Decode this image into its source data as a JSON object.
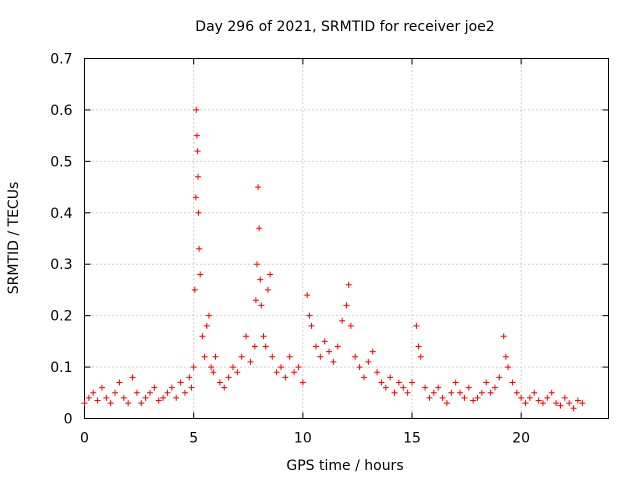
{
  "chart_data": {
    "type": "scatter",
    "title": "Day 296 of 2021, SRMTID for receiver joe2",
    "xlabel": "GPS time / hours",
    "ylabel": "SRMTID / TECUs",
    "xlim": [
      0,
      24
    ],
    "ylim": [
      0,
      0.7
    ],
    "xticks": [
      0,
      5,
      10,
      15,
      20
    ],
    "yticks": [
      0,
      0.1,
      0.2,
      0.3,
      0.4,
      0.5,
      0.6,
      0.7
    ],
    "xtick_labels": [
      "0",
      "5",
      "10",
      "15",
      "20"
    ],
    "ytick_labels": [
      "0",
      "0.1",
      "0.2",
      "0.3",
      "0.4",
      "0.5",
      "0.6",
      "0.7"
    ],
    "grid": true,
    "marker": "+",
    "color": "#ff0000",
    "series": [
      {
        "name": "SRMTID",
        "x": [
          0.0,
          0.2,
          0.4,
          0.6,
          0.8,
          1.0,
          1.2,
          1.4,
          1.6,
          1.8,
          2.0,
          2.2,
          2.4,
          2.6,
          2.8,
          3.0,
          3.2,
          3.4,
          3.6,
          3.8,
          4.0,
          4.2,
          4.4,
          4.6,
          4.8,
          4.9,
          5.0,
          5.05,
          5.1,
          5.12,
          5.15,
          5.18,
          5.2,
          5.22,
          5.25,
          5.3,
          5.4,
          5.5,
          5.6,
          5.7,
          5.8,
          5.9,
          6.0,
          6.2,
          6.4,
          6.6,
          6.8,
          7.0,
          7.2,
          7.4,
          7.6,
          7.8,
          7.85,
          7.9,
          7.95,
          8.0,
          8.05,
          8.1,
          8.2,
          8.3,
          8.4,
          8.5,
          8.6,
          8.8,
          9.0,
          9.2,
          9.4,
          9.6,
          9.8,
          10.0,
          10.2,
          10.3,
          10.4,
          10.6,
          10.8,
          11.0,
          11.2,
          11.4,
          11.6,
          11.8,
          12.0,
          12.1,
          12.2,
          12.4,
          12.6,
          12.8,
          13.0,
          13.2,
          13.4,
          13.6,
          13.8,
          14.0,
          14.2,
          14.4,
          14.6,
          14.8,
          15.0,
          15.2,
          15.3,
          15.4,
          15.6,
          15.8,
          16.0,
          16.2,
          16.4,
          16.6,
          16.8,
          17.0,
          17.2,
          17.4,
          17.6,
          17.8,
          18.0,
          18.2,
          18.4,
          18.6,
          18.8,
          19.0,
          19.2,
          19.3,
          19.4,
          19.6,
          19.8,
          20.0,
          20.2,
          20.4,
          20.6,
          20.8,
          21.0,
          21.2,
          21.4,
          21.6,
          21.8,
          22.0,
          22.2,
          22.4,
          22.6,
          22.8
        ],
        "y": [
          0.03,
          0.04,
          0.05,
          0.035,
          0.06,
          0.04,
          0.03,
          0.05,
          0.07,
          0.04,
          0.03,
          0.08,
          0.05,
          0.03,
          0.04,
          0.05,
          0.06,
          0.035,
          0.04,
          0.05,
          0.06,
          0.04,
          0.07,
          0.05,
          0.08,
          0.06,
          0.1,
          0.25,
          0.43,
          0.6,
          0.55,
          0.52,
          0.47,
          0.4,
          0.33,
          0.28,
          0.16,
          0.12,
          0.18,
          0.2,
          0.1,
          0.09,
          0.12,
          0.07,
          0.06,
          0.08,
          0.1,
          0.09,
          0.12,
          0.16,
          0.11,
          0.14,
          0.23,
          0.3,
          0.45,
          0.37,
          0.27,
          0.22,
          0.16,
          0.14,
          0.25,
          0.28,
          0.12,
          0.09,
          0.1,
          0.08,
          0.12,
          0.09,
          0.1,
          0.07,
          0.24,
          0.2,
          0.18,
          0.14,
          0.12,
          0.15,
          0.13,
          0.11,
          0.14,
          0.19,
          0.22,
          0.26,
          0.18,
          0.12,
          0.1,
          0.08,
          0.11,
          0.13,
          0.09,
          0.07,
          0.06,
          0.08,
          0.05,
          0.07,
          0.06,
          0.05,
          0.07,
          0.18,
          0.14,
          0.12,
          0.06,
          0.04,
          0.05,
          0.06,
          0.04,
          0.03,
          0.05,
          0.07,
          0.05,
          0.04,
          0.06,
          0.035,
          0.04,
          0.05,
          0.07,
          0.05,
          0.06,
          0.08,
          0.16,
          0.12,
          0.1,
          0.07,
          0.05,
          0.04,
          0.03,
          0.04,
          0.05,
          0.035,
          0.03,
          0.04,
          0.05,
          0.03,
          0.025,
          0.04,
          0.03,
          0.02,
          0.035,
          0.03
        ]
      }
    ]
  }
}
